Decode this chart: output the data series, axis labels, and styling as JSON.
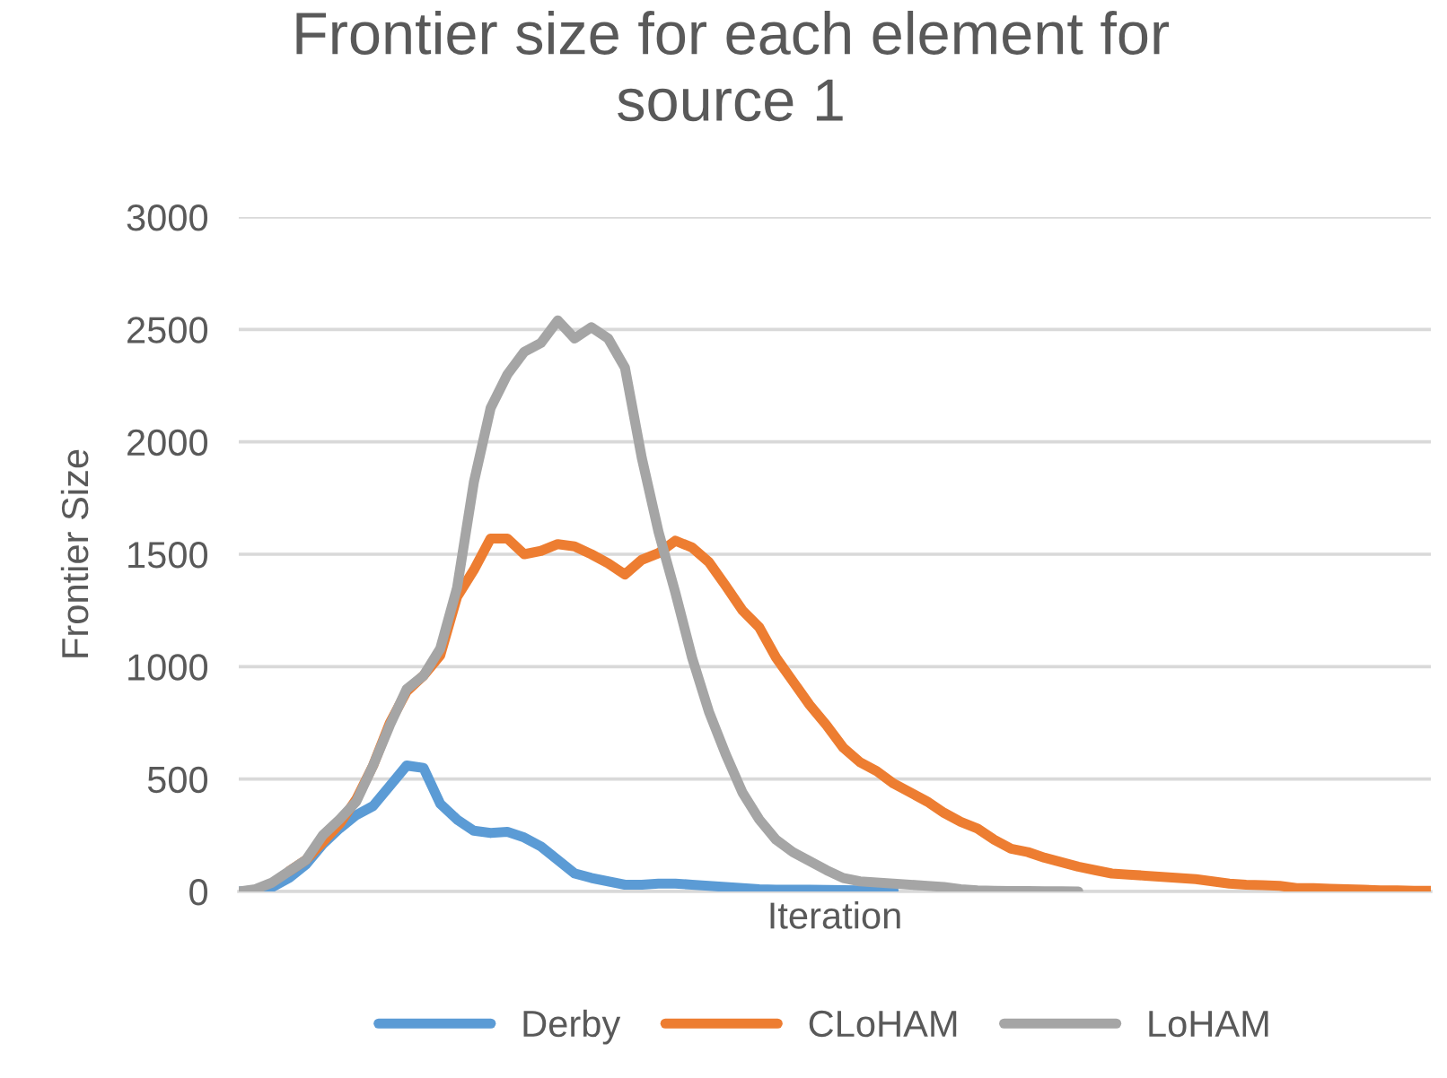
{
  "chart_data": {
    "type": "line",
    "title": "Frontier size for each element for\nsource 1",
    "xlabel": "Iteration",
    "ylabel": "Frontier Size",
    "categories": [
      null,
      null,
      null,
      null,
      null,
      null,
      null,
      null,
      null,
      null,
      null,
      null,
      null,
      null,
      null,
      null,
      null,
      null,
      null,
      null,
      null,
      null,
      null,
      null,
      null,
      null,
      null,
      null,
      null,
      null,
      null,
      null,
      null,
      null,
      null,
      null,
      null,
      null,
      null,
      null,
      null,
      null,
      null,
      null,
      null,
      null,
      null,
      null,
      null,
      null,
      null,
      null,
      null,
      null,
      null,
      null,
      null,
      null,
      null,
      null,
      null,
      null,
      null,
      null,
      null,
      null,
      null,
      null,
      null,
      null,
      null,
      null
    ],
    "series": [
      {
        "name": "Derby",
        "color": "#5b9bd5",
        "values": [
          0,
          5,
          20,
          60,
          120,
          210,
          280,
          340,
          380,
          470,
          560,
          550,
          390,
          320,
          270,
          260,
          265,
          240,
          200,
          140,
          80,
          60,
          45,
          30,
          30,
          35,
          35,
          30,
          25,
          20,
          15,
          10,
          8,
          8,
          8,
          7,
          6,
          5,
          5,
          5,
          null,
          null,
          null,
          null,
          null,
          null,
          null,
          null,
          null,
          null,
          null,
          null,
          null,
          null,
          null,
          null,
          null,
          null,
          null,
          null,
          null,
          null,
          null,
          null,
          null,
          null,
          null,
          null,
          null,
          null,
          null,
          null
        ]
      },
      {
        "name": "CLoHAM",
        "color": "#ed7d31",
        "values": [
          null,
          null,
          null,
          90,
          140,
          220,
          300,
          410,
          560,
          750,
          890,
          960,
          1050,
          1310,
          1430,
          1570,
          1570,
          1500,
          1515,
          1545,
          1535,
          1500,
          1460,
          1410,
          1475,
          1505,
          1560,
          1530,
          1465,
          1360,
          1250,
          1175,
          1040,
          935,
          830,
          740,
          640,
          575,
          535,
          480,
          440,
          400,
          350,
          310,
          280,
          230,
          190,
          175,
          150,
          130,
          110,
          95,
          80,
          75,
          70,
          65,
          60,
          55,
          45,
          35,
          30,
          28,
          25,
          15,
          15,
          12,
          10,
          8,
          5,
          5,
          3,
          3
        ]
      },
      {
        "name": "LoHAM",
        "color": "#a5a5a5",
        "values": [
          0,
          10,
          40,
          90,
          140,
          250,
          320,
          400,
          560,
          740,
          900,
          960,
          1080,
          1350,
          1820,
          2150,
          2300,
          2400,
          2440,
          2540,
          2460,
          2510,
          2460,
          2330,
          1930,
          1600,
          1330,
          1040,
          800,
          610,
          440,
          320,
          230,
          175,
          135,
          95,
          60,
          45,
          40,
          35,
          30,
          25,
          20,
          10,
          5,
          3,
          2,
          2,
          1,
          1,
          0,
          null,
          null,
          null,
          null,
          null,
          null,
          null,
          null,
          null,
          null,
          null,
          null,
          null,
          null,
          null,
          null,
          null,
          null,
          null,
          null,
          null
        ]
      }
    ],
    "ylim": [
      0,
      3000
    ],
    "yticks": [
      0,
      500,
      1000,
      1500,
      2000,
      2500,
      3000
    ],
    "grid": "y",
    "legend": "bottom",
    "tick_labels": "y",
    "line_style": "solid",
    "marker": "none"
  }
}
